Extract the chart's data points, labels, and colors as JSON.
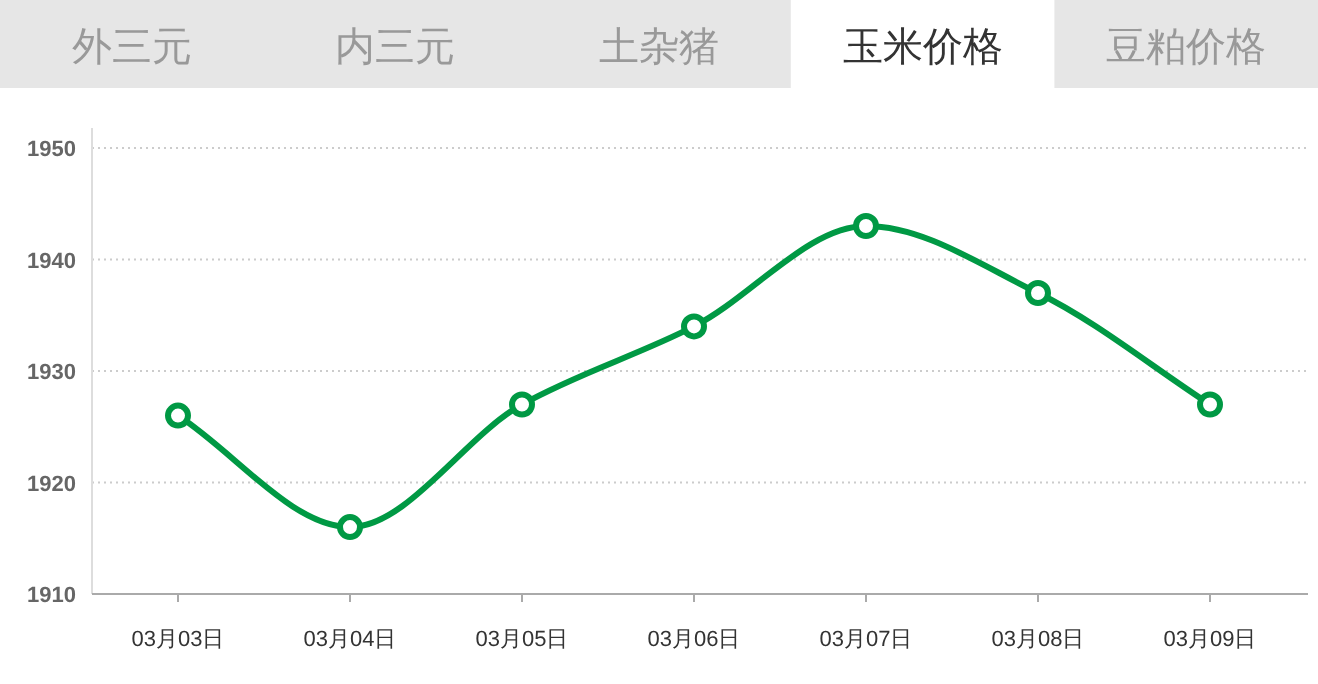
{
  "chart_data": {
    "type": "line",
    "title": "玉米价格",
    "annotations": [
      "外三元",
      "内三元",
      "土杂猪",
      "豆粕价格"
    ],
    "categories": [
      "03月03日",
      "03月04日",
      "03月05日",
      "03月06日",
      "03月07日",
      "03月08日",
      "03月09日"
    ],
    "series": [
      {
        "color": "#009944",
        "values": [
          1926,
          1916,
          1927,
          1934,
          1943,
          1937,
          1927
        ]
      }
    ],
    "ylim": [
      1910,
      1950
    ],
    "yticks": [
      1910,
      1920,
      1930,
      1940,
      1950
    ],
    "grid": "y",
    "marker": "circle",
    "line_style": "solid"
  }
}
